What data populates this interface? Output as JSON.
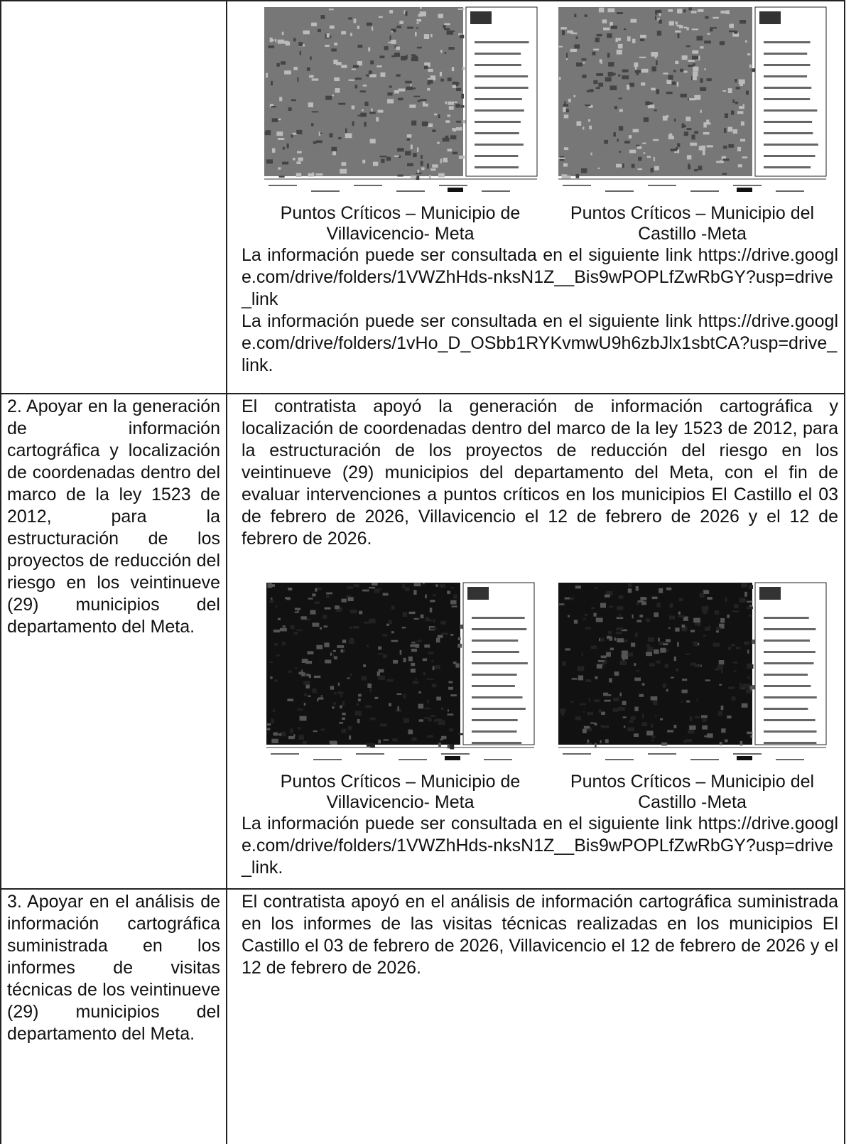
{
  "table": {
    "rows": [
      {
        "figures": [
          {
            "caption": [
              "Puntos Críticos – Municipio de",
              "Villavicencio- Meta"
            ]
          },
          {
            "caption": [
              "Puntos Críticos – Municipio del",
              "Castillo -Meta"
            ]
          }
        ],
        "links": [
          "La información puede ser consultada en el siguiente link https://drive.google.com/drive/folders/1VWZhHds-nksN1Z__Bis9wPOPLfZwRbGY?usp=drive_link",
          "La información puede ser consultada en el siguiente link https://drive.google.com/drive/folders/1vHo_D_OSbb1RYKvmwU9h6zbJlx1sbtCA?usp=drive_link."
        ]
      },
      {
        "task": "2. Apoyar en la generación de información cartográfica y localización de coordenadas dentro del marco de la ley 1523 de 2012, para la estructuración de los proyectos de reducción del riesgo en los veintinueve (29) municipios del departamento del Meta.",
        "description": "El contratista apoyó la generación de información cartográfica y localización de coordenadas dentro del marco de la ley 1523 de 2012, para la estructuración de los proyectos de reducción del riesgo en los veintinueve (29) municipios del departamento del Meta, con el fin de evaluar intervenciones a puntos críticos en los municipios El Castillo el 03 de febrero de 2026, Villavicencio el 12 de febrero de 2026 y el 12 de febrero de 2026.",
        "figures": [
          {
            "caption": [
              "Puntos Críticos – Municipio de",
              "Villavicencio- Meta"
            ]
          },
          {
            "caption": [
              "Puntos Críticos – Municipio del",
              "Castillo -Meta"
            ]
          }
        ],
        "links": [
          "La información puede ser consultada en el siguiente link https://drive.google.com/drive/folders/1VWZhHds-nksN1Z__Bis9wPOPLfZwRbGY?usp=drive_link."
        ]
      },
      {
        "task": "3. Apoyar en el análisis de información cartográfica suministrada en los informes de visitas técnicas de los veintinueve (29) municipios del departamento del Meta.",
        "description": "El contratista apoyó en el análisis de información cartográfica suministrada en los informes de las visitas técnicas realizadas en los municipios El Castillo el 03 de febrero de 2026, Villavicencio el 12 de febrero de 2026 y el 12 de febrero de 2026."
      }
    ]
  }
}
